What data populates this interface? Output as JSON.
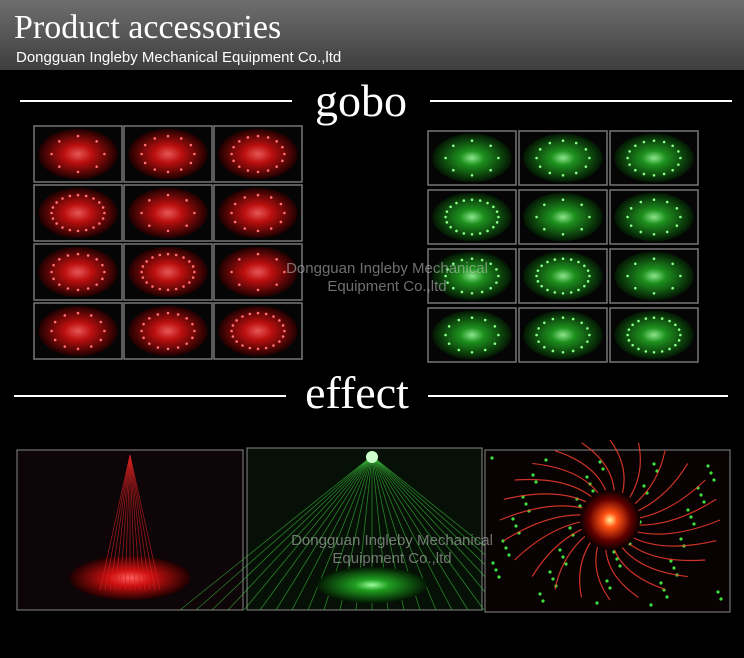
{
  "header": {
    "title": "Product accessories",
    "subtitle": "Dongguan Ingleby Mechanical Equipment Co.,ltd"
  },
  "sections": [
    {
      "heading": "gobo"
    },
    {
      "heading": "effect"
    }
  ],
  "watermarks": [
    {
      "lines": [
        "Dongguan Ingleby Mechanical",
        "Equipment Co.,ltd"
      ]
    },
    {
      "lines": [
        "Dongguan Ingleby Mechanical",
        "Equipment Co.,ltd"
      ]
    }
  ]
}
